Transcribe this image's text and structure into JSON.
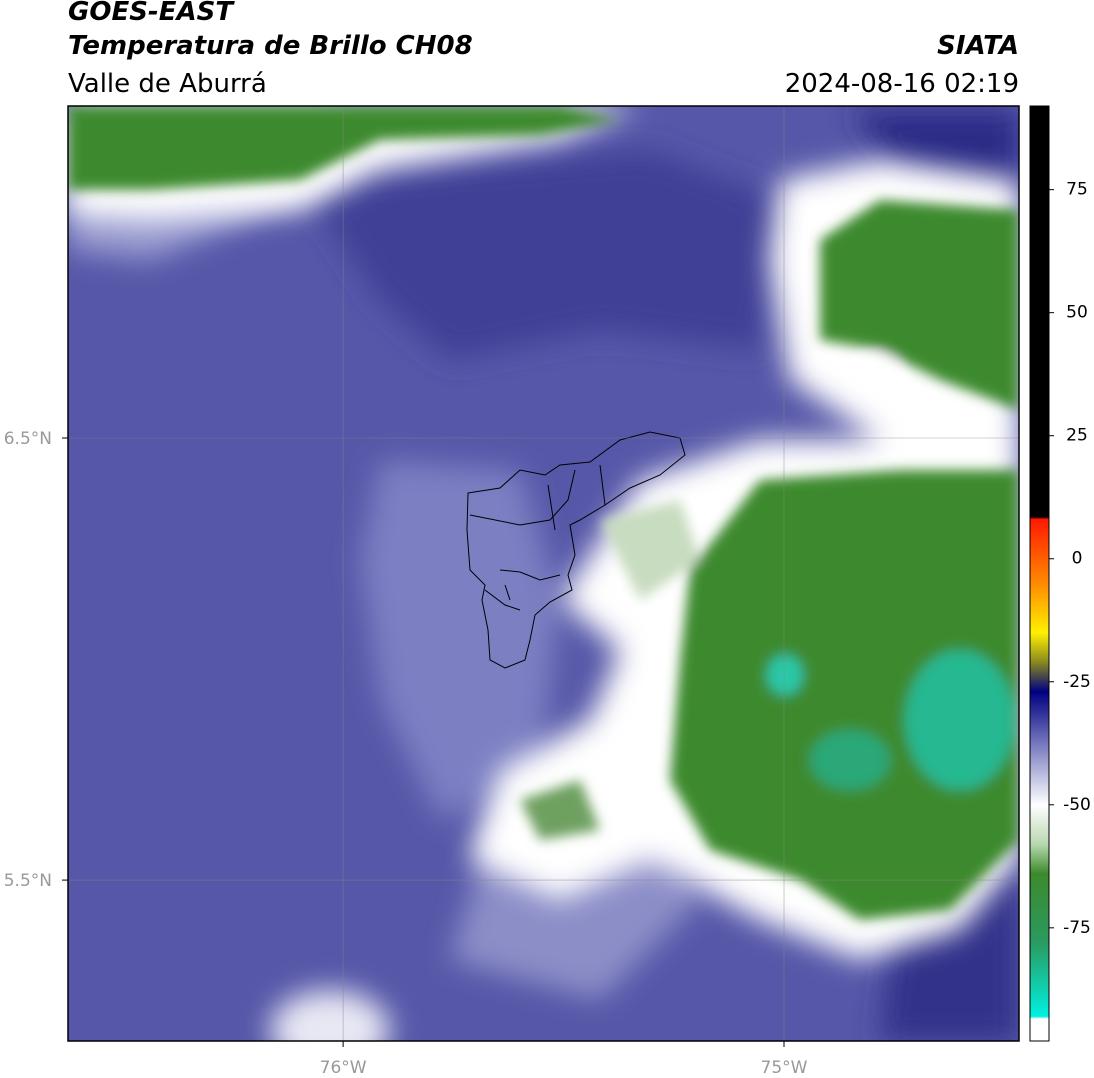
{
  "header": {
    "title": "GOES-EAST",
    "subtitle": "Temperatura de Brillo CH08",
    "region": "Valle de Aburrá",
    "source": "SIATA",
    "datetime": "2024-08-16 02:19"
  },
  "map": {
    "xlim": [
      -76.624,
      -74.467
    ],
    "ylim": [
      5.136,
      7.251
    ],
    "xticks": [
      {
        "value": -76,
        "label": "76°W"
      },
      {
        "value": -75,
        "label": "75°W"
      }
    ],
    "yticks": [
      {
        "value": 6.5,
        "label": "6.5°N"
      },
      {
        "value": 5.5,
        "label": "5.5°N"
      }
    ],
    "grid": true
  },
  "colorbar": {
    "clim": [
      -98,
      92
    ],
    "ticks": [
      75,
      50,
      25,
      0,
      -25,
      -50,
      -75
    ],
    "colormap": [
      {
        "value": 92,
        "color": "#000000"
      },
      {
        "value": 8.5,
        "color": "#000000"
      },
      {
        "value": 8,
        "color": "#ff1a00"
      },
      {
        "value": -5,
        "color": "#ff8a00"
      },
      {
        "value": -15,
        "color": "#fff000"
      },
      {
        "value": -21,
        "color": "#8a8a20"
      },
      {
        "value": -27,
        "color": "#000080"
      },
      {
        "value": -38,
        "color": "#7a7cc0"
      },
      {
        "value": -50,
        "color": "#ffffff"
      },
      {
        "value": -58,
        "color": "#b8d8b0"
      },
      {
        "value": -64,
        "color": "#3d8a2d"
      },
      {
        "value": -78,
        "color": "#2a9a60"
      },
      {
        "value": -93,
        "color": "#00f0e0"
      },
      {
        "value": -93.5,
        "color": "#ffffff"
      },
      {
        "value": -98,
        "color": "#ffffff"
      }
    ]
  }
}
